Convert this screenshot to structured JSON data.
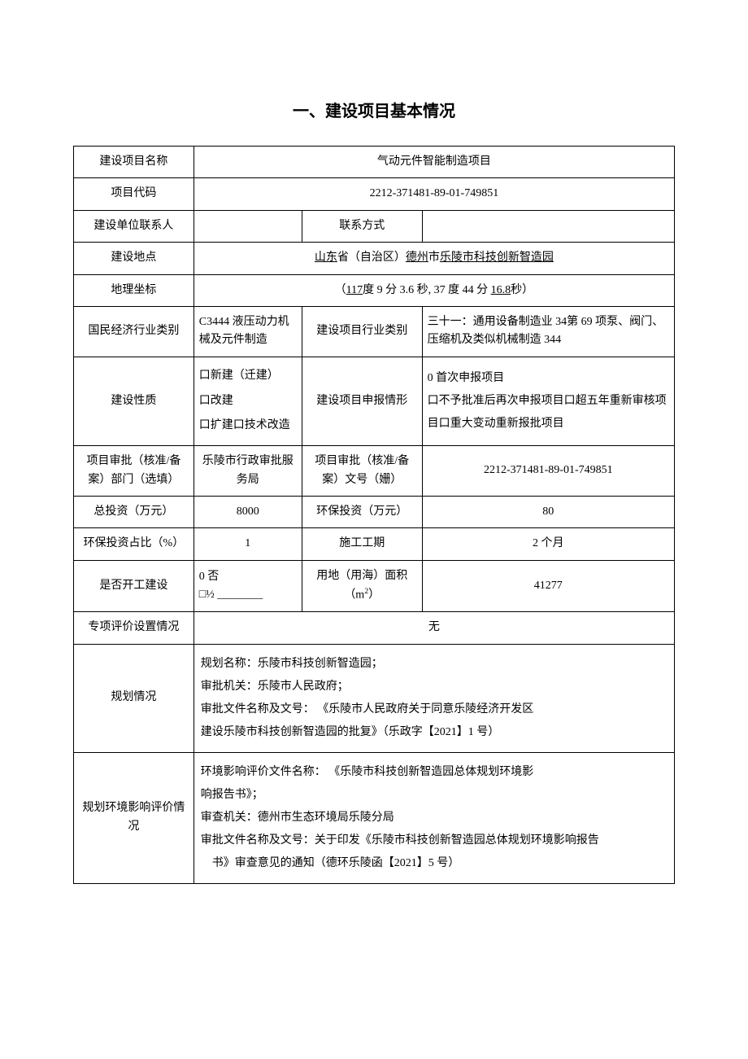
{
  "title": "一、建设项目基本情况",
  "rows": {
    "project_name_label": "建设项目名称",
    "project_name_value": "气动元件智能制造项目",
    "project_code_label": "项目代码",
    "project_code_value": "2212-371481-89-01-749851",
    "contact_person_label": "建设单位联系人",
    "contact_person_value": "",
    "contact_method_label": "联系方式",
    "contact_method_value": "",
    "location_label": "建设地点",
    "location_prefix": "山东",
    "location_mid": "省（自治区）",
    "location_city": "德州",
    "location_mid2": "市",
    "location_park": "乐陵市科技创新智造园",
    "geo_label": "地理坐标",
    "geo_prefix": "（",
    "geo_lon": "117",
    "geo_lon_suffix": "度 9 分 3.6 秒, 37 度 44 分",
    "geo_lat_sec": "16.8",
    "geo_suffix": "秒）",
    "econ_class_label": "国民经济行业类别",
    "econ_class_value": "C3444 液压动力机械及元件制造",
    "proj_industry_label": "建设项目行业类别",
    "proj_industry_value": "三十一：通用设备制造业 34第 69 项泵、阀门、压缩机及类似机械制造 344",
    "build_nature_label": "建设性质",
    "build_nature_opt1": "口新建（迁建）",
    "build_nature_opt2": "口改建",
    "build_nature_opt3": "口扩建口技术改造",
    "declare_label": "建设项目申报情形",
    "declare_opt1": "0 首次申报项目",
    "declare_opt2": "口不予批准后再次申报项目口超五年重新审核项目口重大变动重新报批项目",
    "approval_dept_label": "项目审批（核准/备案）部门（选填）",
    "approval_dept_value": "乐陵市行政审批服务局",
    "approval_doc_label": "项目审批（核准/备案）文号（姗）",
    "approval_doc_value": "2212-371481-89-01-749851",
    "total_invest_label": "总投资（万元）",
    "total_invest_value": "8000",
    "env_invest_label": "环保投资（万元）",
    "env_invest_value": "80",
    "env_ratio_label": "环保投资占比（%）",
    "env_ratio_value": "1",
    "period_label": "施工工期",
    "period_value": "2 个月",
    "started_label": "是否开工建设",
    "started_opt1": "0 否",
    "started_opt2": "□½ ________",
    "land_area_label_pre": "用地（用海）面积（m",
    "land_area_label_suf": "）",
    "land_area_value": "41277",
    "special_eval_label": "专项评价设置情况",
    "special_eval_value": "无",
    "planning_label": "规划情况",
    "planning_line1": "规划名称：乐陵市科技创新智造园；",
    "planning_line2": "审批机关：乐陵市人民政府；",
    "planning_line3": "审批文件名称及文号： 《乐陵市人民政府关于同意乐陵经济开发区",
    "planning_line4": "建设乐陵市科技创新智造园的批复》（乐政字【2021】1 号）",
    "env_plan_label": "规划环境影响评价情况",
    "env_plan_line1": "环境影响评价文件名称： 《乐陵市科技创新智造园总体规划环境影",
    "env_plan_line2": "响报告书》；",
    "env_plan_line3": "审查机关：德州市生态环境局乐陵分局",
    "env_plan_line4": "审批文件名称及文号：关于印发《乐陵市科技创新智造园总体规划环境影响报告",
    "env_plan_line5": "书》审查意见的通知（德环乐陵函【2021】5 号）"
  }
}
